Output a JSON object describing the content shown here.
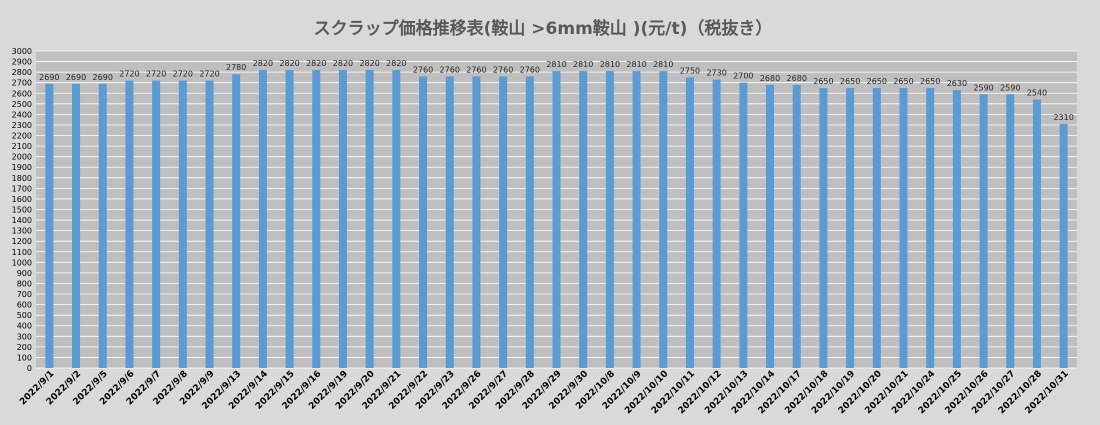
{
  "chart_data": {
    "type": "bar",
    "title": "スクラップ価格推移表(鞍山 >6mm鞍山 )(元/t)（税抜き）",
    "xlabel": "",
    "ylabel": "",
    "ylim": [
      0,
      3000
    ],
    "ytick_step": 100,
    "grid": true,
    "legend": "none",
    "colors": {
      "bar": "#5b9bd5",
      "plot_bg": "#bfbfbf",
      "page_bg": "#d9d9d9",
      "grid": "#ffffff"
    },
    "categories": [
      "2022/9/1",
      "2022/9/2",
      "2022/9/5",
      "2022/9/6",
      "2022/9/7",
      "2022/9/8",
      "2022/9/9",
      "2022/9/13",
      "2022/9/14",
      "2022/9/15",
      "2022/9/16",
      "2022/9/19",
      "2022/9/20",
      "2022/9/21",
      "2022/9/22",
      "2022/9/23",
      "2022/9/26",
      "2022/9/27",
      "2022/9/28",
      "2022/9/29",
      "2022/9/30",
      "2022/10/8",
      "2022/10/9",
      "2022/10/10",
      "2022/10/11",
      "2022/10/12",
      "2022/10/13",
      "2022/10/14",
      "2022/10/17",
      "2022/10/18",
      "2022/10/19",
      "2022/10/20",
      "2022/10/21",
      "2022/10/24",
      "2022/10/25",
      "2022/10/26",
      "2022/10/27",
      "2022/10/28",
      "2022/10/31"
    ],
    "values": [
      2690,
      2690,
      2690,
      2720,
      2720,
      2720,
      2720,
      2780,
      2820,
      2820,
      2820,
      2820,
      2820,
      2820,
      2760,
      2760,
      2760,
      2760,
      2760,
      2810,
      2810,
      2810,
      2810,
      2810,
      2750,
      2730,
      2700,
      2680,
      2680,
      2650,
      2650,
      2650,
      2650,
      2650,
      2630,
      2590,
      2590,
      2540,
      2310
    ]
  }
}
